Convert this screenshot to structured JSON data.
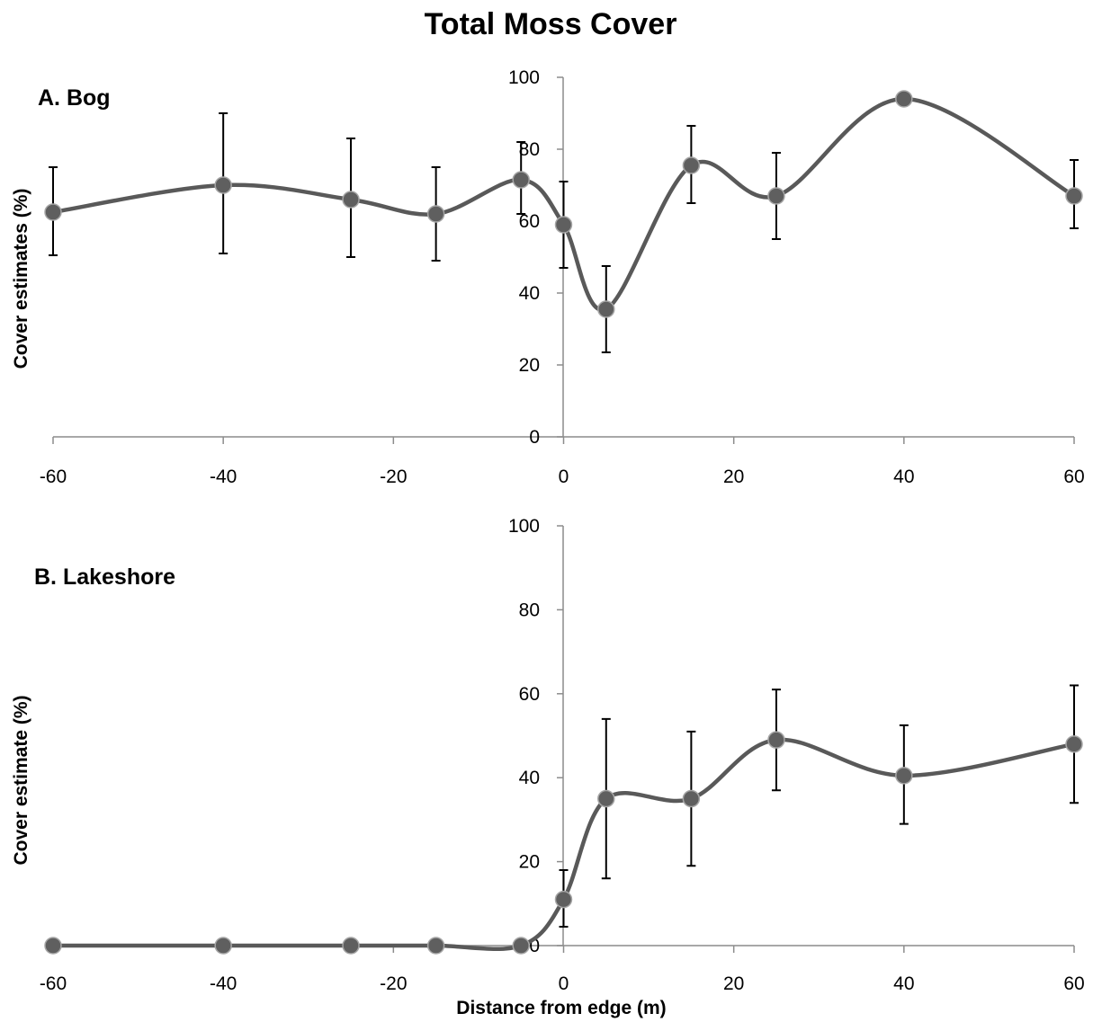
{
  "figure_title": "Total Moss Cover",
  "colors": {
    "series": "#595959",
    "marker": "#5f5f5f",
    "marker_edge": "#a6a6a6",
    "errorbar": "#000000",
    "axis": "#8c8c8c"
  },
  "chart_data": [
    {
      "type": "line",
      "smooth": true,
      "title": "A. Bog",
      "xlabel": "",
      "ylabel": "Cover estimates (%)",
      "xlim": [
        -60,
        60
      ],
      "ylim": [
        0,
        100
      ],
      "xticks": [
        -60,
        -40,
        -20,
        0,
        20,
        40,
        60
      ],
      "yticks": [
        0,
        20,
        40,
        60,
        80,
        100
      ],
      "grid": false,
      "series": [
        {
          "x": [
            -60,
            -40,
            -25,
            -15,
            -5,
            0,
            5,
            15,
            25,
            40,
            60
          ],
          "y": [
            62.5,
            70,
            66,
            62,
            71.5,
            59,
            35.5,
            75.5,
            67,
            94,
            67
          ],
          "err_low": [
            50.5,
            51,
            50,
            49,
            62,
            47,
            23.5,
            65,
            55,
            94,
            58
          ],
          "err_high": [
            75,
            90,
            83,
            75,
            82,
            71,
            47.5,
            86.5,
            79,
            94,
            77
          ]
        }
      ]
    },
    {
      "type": "line",
      "smooth": true,
      "title": "B. Lakeshore",
      "xlabel": "Distance from edge (m)",
      "ylabel": "Cover estimate (%)",
      "xlim": [
        -60,
        60
      ],
      "ylim": [
        0,
        100
      ],
      "xticks": [
        -60,
        -40,
        -20,
        0,
        20,
        40,
        60
      ],
      "yticks": [
        0,
        20,
        40,
        60,
        80,
        100
      ],
      "ytick_labels": [
        "0",
        "20",
        "40",
        "60",
        "80",
        "100"
      ],
      "grid": false,
      "series": [
        {
          "x": [
            -60,
            -40,
            -25,
            -15,
            -5,
            0,
            5,
            15,
            25,
            40,
            60
          ],
          "y": [
            0,
            0,
            0,
            0,
            0,
            11,
            35,
            35,
            49,
            40.5,
            48
          ],
          "err_low": [
            0,
            0,
            0,
            0,
            0,
            4.5,
            16,
            19,
            37,
            29,
            34
          ],
          "err_high": [
            0,
            0,
            0,
            0,
            0,
            18,
            54,
            51,
            61,
            52.5,
            62
          ]
        }
      ]
    }
  ]
}
